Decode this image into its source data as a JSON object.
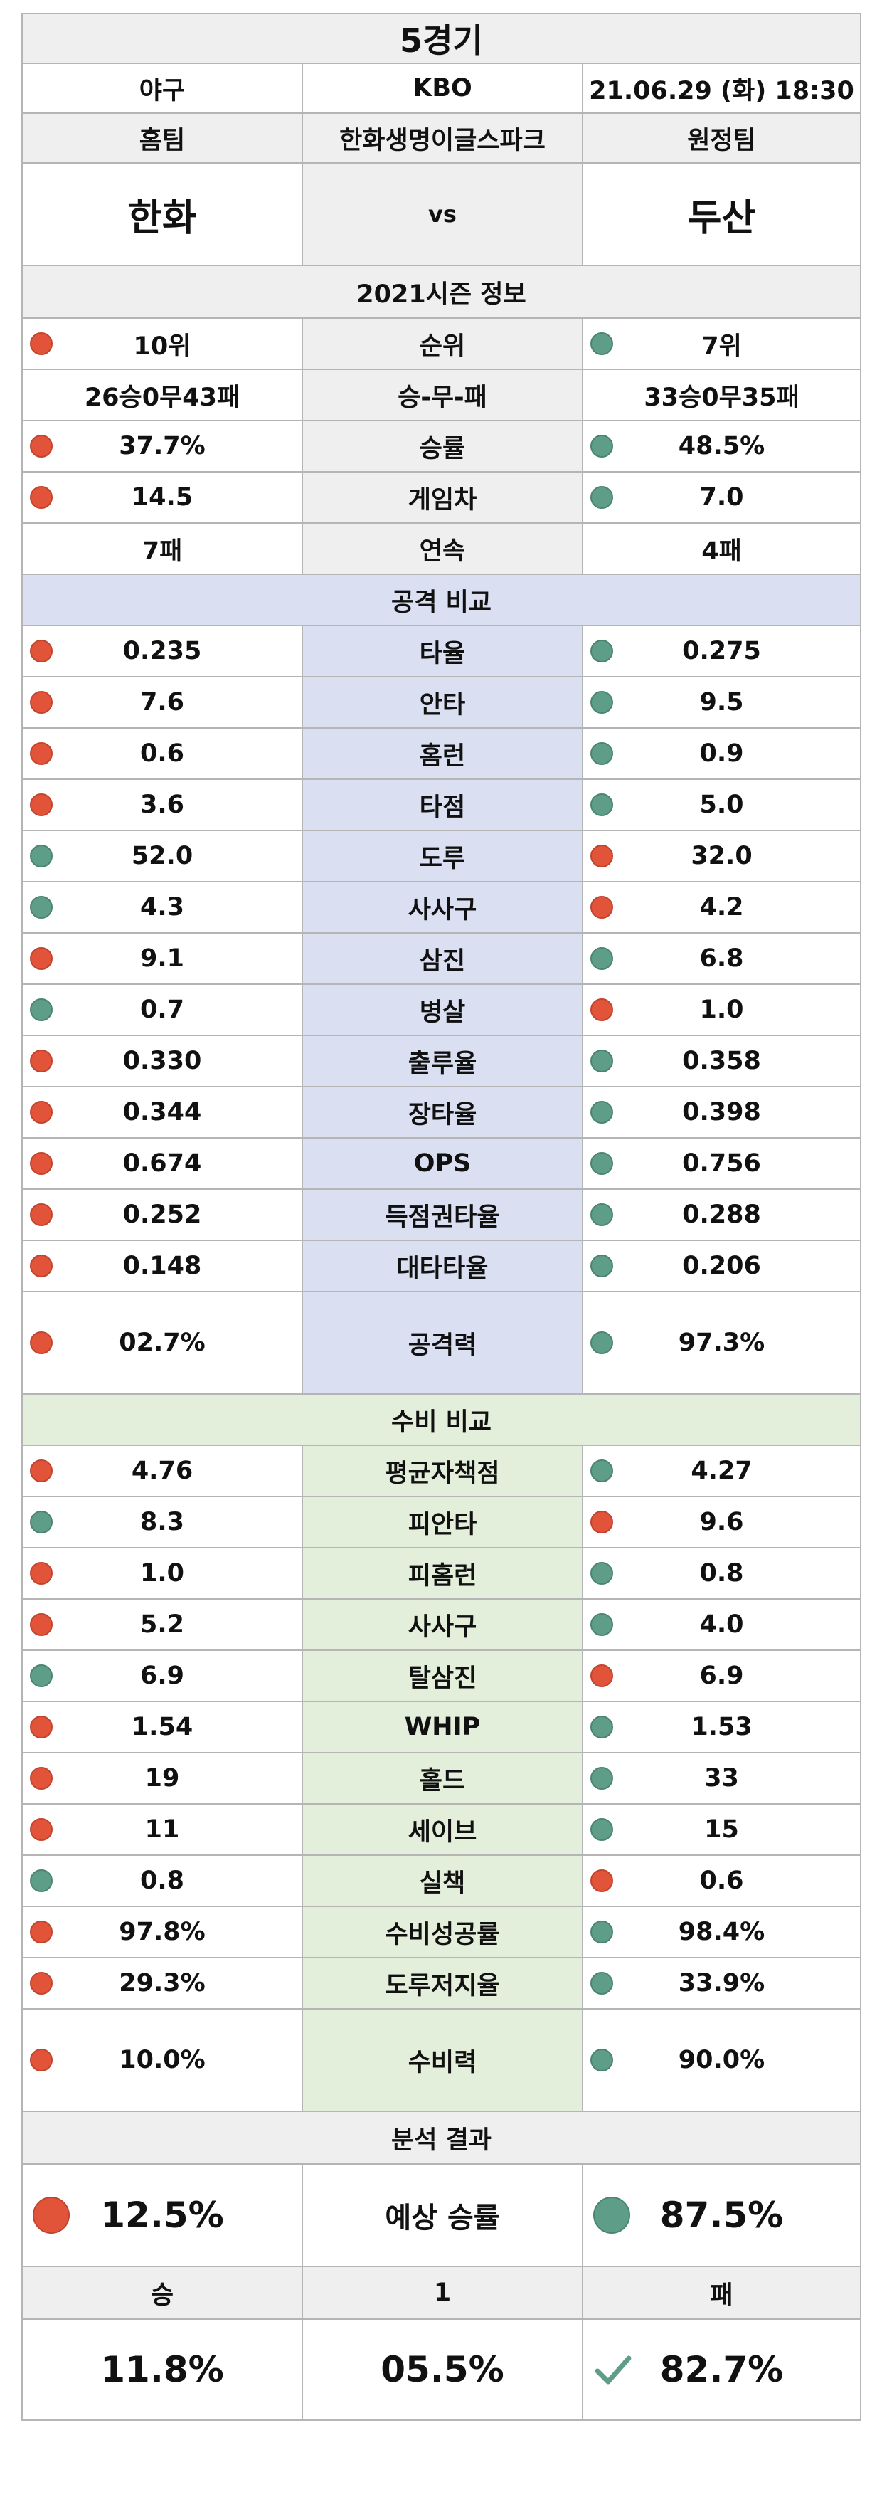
{
  "header": {
    "title": "5경기",
    "sport": "야구",
    "league": "KBO",
    "datetime": "21.06.29 (화) 18:30",
    "home_label": "홈팀",
    "stadium": "한화생명이글스파크",
    "away_label": "원정팀",
    "home_team": "한화",
    "vs": "vs",
    "away_team": "두산"
  },
  "colors": {
    "red_dot": "#e2543a",
    "green_dot": "#5e9e88",
    "gray_bg": "#efefef",
    "offense_bg": "#dae0f2",
    "defense_bg": "#e3eedb",
    "grid": "#b5b5b5"
  },
  "season": {
    "title": "2021시즌 정보",
    "rows": [
      {
        "label": "순위",
        "home": "10위",
        "away": "7위",
        "home_dot": "red",
        "away_dot": "green"
      },
      {
        "label": "승-무-패",
        "home": "26승0무43패",
        "away": "33승0무35패",
        "home_dot": "",
        "away_dot": ""
      },
      {
        "label": "승률",
        "home": "37.7%",
        "away": "48.5%",
        "home_dot": "red",
        "away_dot": "green"
      },
      {
        "label": "게임차",
        "home": "14.5",
        "away": "7.0",
        "home_dot": "red",
        "away_dot": "green"
      },
      {
        "label": "연속",
        "home": "7패",
        "away": "4패",
        "home_dot": "",
        "away_dot": ""
      }
    ]
  },
  "offense": {
    "title": "공격 비교",
    "rows": [
      {
        "label": "타율",
        "home": "0.235",
        "away": "0.275",
        "home_dot": "red",
        "away_dot": "green"
      },
      {
        "label": "안타",
        "home": "7.6",
        "away": "9.5",
        "home_dot": "red",
        "away_dot": "green"
      },
      {
        "label": "홈런",
        "home": "0.6",
        "away": "0.9",
        "home_dot": "red",
        "away_dot": "green"
      },
      {
        "label": "타점",
        "home": "3.6",
        "away": "5.0",
        "home_dot": "red",
        "away_dot": "green"
      },
      {
        "label": "도루",
        "home": "52.0",
        "away": "32.0",
        "home_dot": "green",
        "away_dot": "red"
      },
      {
        "label": "사사구",
        "home": "4.3",
        "away": "4.2",
        "home_dot": "green",
        "away_dot": "red"
      },
      {
        "label": "삼진",
        "home": "9.1",
        "away": "6.8",
        "home_dot": "red",
        "away_dot": "green"
      },
      {
        "label": "병살",
        "home": "0.7",
        "away": "1.0",
        "home_dot": "green",
        "away_dot": "red"
      },
      {
        "label": "출루율",
        "home": "0.330",
        "away": "0.358",
        "home_dot": "red",
        "away_dot": "green"
      },
      {
        "label": "장타율",
        "home": "0.344",
        "away": "0.398",
        "home_dot": "red",
        "away_dot": "green"
      },
      {
        "label": "OPS",
        "home": "0.674",
        "away": "0.756",
        "home_dot": "red",
        "away_dot": "green"
      },
      {
        "label": "득점권타율",
        "home": "0.252",
        "away": "0.288",
        "home_dot": "red",
        "away_dot": "green"
      },
      {
        "label": "대타타율",
        "home": "0.148",
        "away": "0.206",
        "home_dot": "red",
        "away_dot": "green"
      }
    ],
    "total": {
      "label": "공격력",
      "home": "02.7%",
      "away": "97.3%",
      "home_dot": "red",
      "away_dot": "green"
    }
  },
  "defense": {
    "title": "수비 비교",
    "rows": [
      {
        "label": "평균자책점",
        "home": "4.76",
        "away": "4.27",
        "home_dot": "red",
        "away_dot": "green"
      },
      {
        "label": "피안타",
        "home": "8.3",
        "away": "9.6",
        "home_dot": "green",
        "away_dot": "red"
      },
      {
        "label": "피홈런",
        "home": "1.0",
        "away": "0.8",
        "home_dot": "red",
        "away_dot": "green"
      },
      {
        "label": "사사구",
        "home": "5.2",
        "away": "4.0",
        "home_dot": "red",
        "away_dot": "green"
      },
      {
        "label": "탈삼진",
        "home": "6.9",
        "away": "6.9",
        "home_dot": "green",
        "away_dot": "red"
      },
      {
        "label": "WHIP",
        "home": "1.54",
        "away": "1.53",
        "home_dot": "red",
        "away_dot": "green"
      },
      {
        "label": "홀드",
        "home": "19",
        "away": "33",
        "home_dot": "red",
        "away_dot": "green"
      },
      {
        "label": "세이브",
        "home": "11",
        "away": "15",
        "home_dot": "red",
        "away_dot": "green"
      },
      {
        "label": "실책",
        "home": "0.8",
        "away": "0.6",
        "home_dot": "green",
        "away_dot": "red"
      },
      {
        "label": "수비성공률",
        "home": "97.8%",
        "away": "98.4%",
        "home_dot": "red",
        "away_dot": "green"
      },
      {
        "label": "도루저지율",
        "home": "29.3%",
        "away": "33.9%",
        "home_dot": "red",
        "away_dot": "green"
      }
    ],
    "total": {
      "label": "수비력",
      "home": "10.0%",
      "away": "90.0%",
      "home_dot": "red",
      "away_dot": "green"
    }
  },
  "analysis": {
    "title": "분석 결과",
    "win_prob_label": "예상 승률",
    "home_win_prob": "12.5%",
    "away_win_prob": "87.5%",
    "home_dot": "red",
    "away_dot": "green",
    "outcome_labels": {
      "win": "승",
      "draw": "1",
      "loss": "패"
    },
    "outcome_values": {
      "win": "11.8%",
      "draw": "05.5%",
      "loss": "82.7%"
    },
    "pick_icon": "check-icon"
  }
}
